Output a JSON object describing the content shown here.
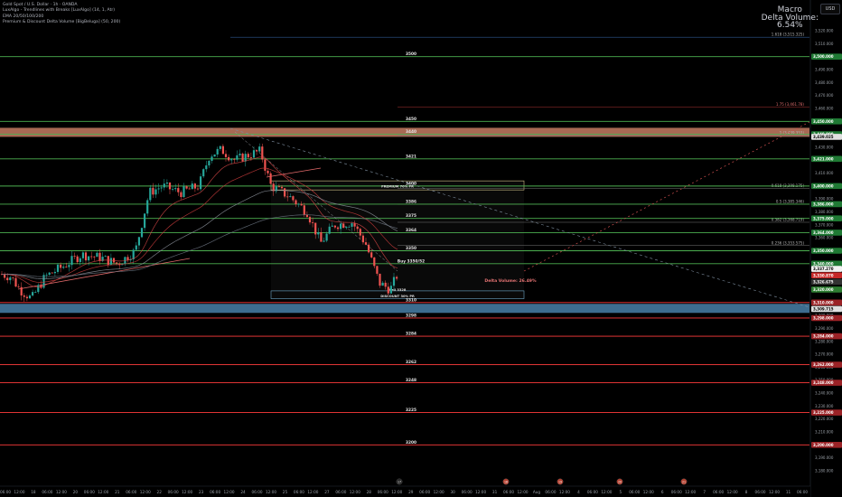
{
  "legend": {
    "line1": "Gold Spot / U.S. Dollar · 1h · OANDA",
    "line2": "LuxAlgo - Trendlines with Breaks [LuxAlgo] (14, 1, Atr)",
    "line3": "EMA 20/50/100/200",
    "line4": "Premium & Discount Delta Volume [BigBeluga] (50, 200)"
  },
  "macro": {
    "title": "Macro",
    "label": "Delta Volume:",
    "value": "6.54%"
  },
  "currency_button": "USD",
  "colors": {
    "bull": "#26a69a",
    "bear": "#ef5350",
    "support": "#4caf50",
    "resistance": "#ff3b3b",
    "fib": "#c5c5c5",
    "premium_zone": "#a86a54",
    "discount_zone": "#3d6d8f"
  },
  "chart_data": {
    "type": "candlestick",
    "symbol": "Gold Spot / U.S. Dollar",
    "timeframe": "1h",
    "ylim": [
      3170,
      3530
    ],
    "y_ticks": [
      3180,
      3190,
      3200,
      3210,
      3220,
      3230,
      3240,
      3250,
      3260,
      3270,
      3280,
      3290,
      3300,
      3310,
      3320,
      3330,
      3340,
      3350,
      3360,
      3370,
      3380,
      3390,
      3400,
      3410,
      3420,
      3430,
      3440,
      3450,
      3460,
      3470,
      3480,
      3490,
      3500,
      3510,
      3520
    ],
    "x_ticks": [
      "06:00",
      "12:00",
      "18",
      "06:00",
      "12:00",
      "20",
      "06:00",
      "12:00",
      "21",
      "06:00",
      "12:00",
      "22",
      "06:00",
      "12:00",
      "23",
      "06:00",
      "12:00",
      "24",
      "06:00",
      "12:00",
      "25",
      "06:00",
      "12:00",
      "27",
      "06:00",
      "12:00",
      "28",
      "06:00",
      "12:00",
      "29",
      "06:00",
      "12:00",
      "30",
      "06:00",
      "12:00",
      "31",
      "06:00",
      "12:00",
      "Aug",
      "06:00",
      "12:00",
      "4",
      "06:00",
      "12:00",
      "5",
      "06:00",
      "12:00",
      "6",
      "06:00",
      "12:00",
      "7",
      "06:00",
      "12:00",
      "8",
      "06:00",
      "12:00",
      "11",
      "06:00"
    ],
    "levels": [
      {
        "price": 3500,
        "label": "3500",
        "color": "green",
        "right": "3,500.000"
      },
      {
        "price": 3450,
        "label": "3450",
        "color": "green",
        "right": "3,450.000"
      },
      {
        "price": 3440,
        "label": "3440",
        "color": "green",
        "right": "3,440.000"
      },
      {
        "price": 3421,
        "label": "3421",
        "color": "green",
        "right": "3,421.000"
      },
      {
        "price": 3400,
        "label": "3400",
        "color": "green",
        "right": "3,400.000"
      },
      {
        "price": 3386,
        "label": "3386",
        "color": "green",
        "right": "3,386.000"
      },
      {
        "price": 3375,
        "label": "3375",
        "color": "green",
        "right": "3,375.000"
      },
      {
        "price": 3364,
        "label": "3364",
        "color": "green",
        "right": "3,364.000"
      },
      {
        "price": 3350,
        "label": "3350",
        "color": "green",
        "right": "3,350.000"
      },
      {
        "price": 3340,
        "label": "Buy 3350/52",
        "color": "green",
        "right": "3,340.000"
      },
      {
        "price": 3310,
        "label": "3310",
        "color": "red",
        "right": "3,310.000"
      },
      {
        "price": 3298,
        "label": "3298",
        "color": "red",
        "right": "3,298.000"
      },
      {
        "price": 3284,
        "label": "3284",
        "color": "red",
        "right": "3,284.000"
      },
      {
        "price": 3262,
        "label": "3262",
        "color": "red",
        "right": "3,262.000"
      },
      {
        "price": 3248,
        "label": "3248",
        "color": "red",
        "right": "3,248.000"
      },
      {
        "price": 3225,
        "label": "3225",
        "color": "red",
        "right": "3,225.000"
      },
      {
        "price": 3200,
        "label": "3200",
        "color": "red",
        "right": "3,200.000"
      }
    ],
    "annotations": [
      {
        "price": 3319,
        "label": "Sell 3328"
      },
      {
        "price": 3314,
        "label": "DISCOUNT 30% PR"
      },
      {
        "price": 3399,
        "label": "PREMIUM 70% PR"
      },
      {
        "price": 3326,
        "label": "Delta Volume: 26.49%"
      }
    ],
    "fib_levels": [
      {
        "price": 3515,
        "label": "1.618 (3,515.325)"
      },
      {
        "price": 3461,
        "label": "1.75 (3,461.78)"
      },
      {
        "price": 3439,
        "label": "1 (3,439.353)"
      },
      {
        "price": 3398,
        "label": "0.618 (3,398.175)"
      },
      {
        "price": 3386,
        "label": "0.5 (3,385.346)"
      },
      {
        "price": 3372,
        "label": "0.382 (3,368.719)"
      },
      {
        "price": 3354,
        "label": "0.236 (3,353.575)"
      }
    ],
    "price_tags": [
      {
        "price": 3336,
        "label": "3,337.270",
        "kind": "current"
      },
      {
        "price": 3331,
        "label": "3,330.870",
        "kind": "red"
      },
      {
        "price": 3326,
        "label": "3,326.675",
        "kind": "dark"
      },
      {
        "price": 3320,
        "label": "3,320.000",
        "kind": "green"
      },
      {
        "price": 3438,
        "label": "3,439.025",
        "kind": "high"
      },
      {
        "price": 3305,
        "label": "3,309.715",
        "kind": "low"
      }
    ],
    "zones": [
      {
        "name": "premium",
        "top": 3445,
        "bottom": 3438
      },
      {
        "name": "discount",
        "top": 3309,
        "bottom": 3302
      }
    ],
    "markers": [
      "17",
      "18",
      "19",
      "20",
      "21"
    ]
  }
}
